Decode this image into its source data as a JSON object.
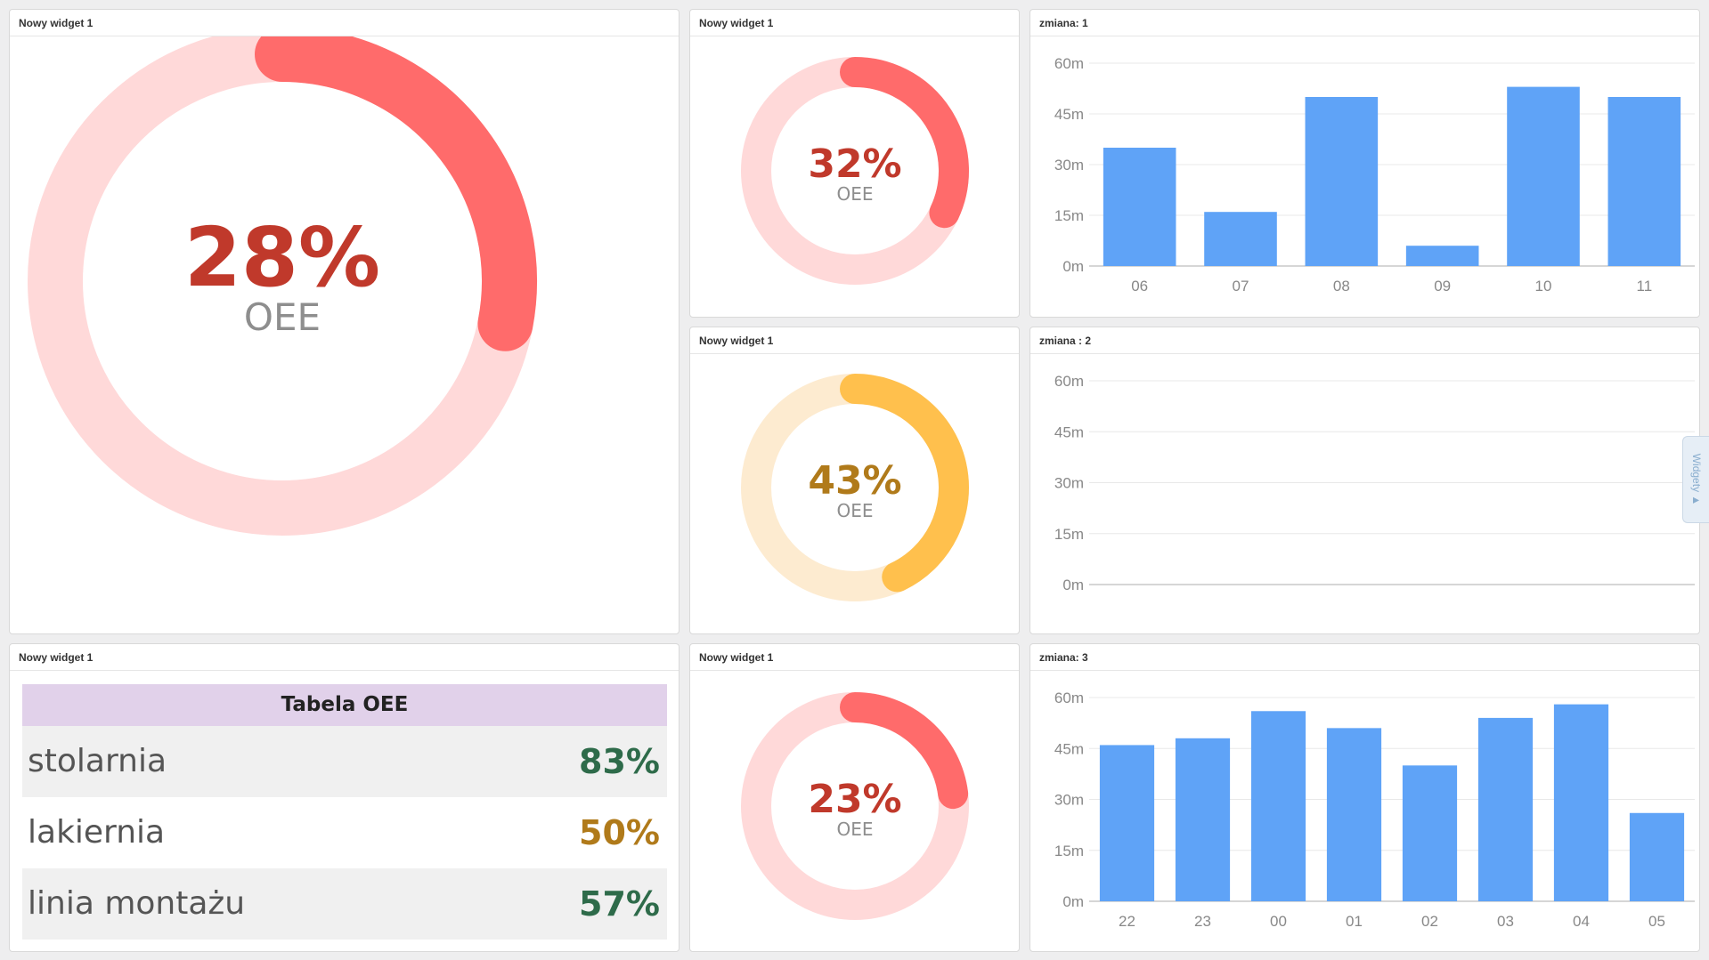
{
  "widgets": {
    "big_gauge": {
      "title": "Nowy widget 1",
      "percent": 28,
      "percent_text": "28%",
      "label": "OEE",
      "color": "#ff6b6b",
      "track": "#ffd9d9",
      "text_color": "#c0392b"
    },
    "gauge_1": {
      "title": "Nowy widget 1",
      "percent": 32,
      "percent_text": "32%",
      "label": "OEE",
      "color": "#ff6b6b",
      "track": "#ffd9d9",
      "text_color": "#c0392b"
    },
    "gauge_2": {
      "title": "Nowy widget 1",
      "percent": 43,
      "percent_text": "43%",
      "label": "OEE",
      "color": "#ffc04d",
      "track": "#fdebd0",
      "text_color": "#b07a1a"
    },
    "gauge_3": {
      "title": "Nowy widget 1",
      "percent": 23,
      "percent_text": "23%",
      "label": "OEE",
      "color": "#ff6b6b",
      "track": "#ffd9d9",
      "text_color": "#c0392b"
    },
    "table": {
      "title": "Nowy widget 1",
      "header": "Tabela OEE",
      "rows": [
        {
          "name": "stolarnia",
          "value": "83%",
          "color": "#2e6b4a"
        },
        {
          "name": "lakiernia",
          "value": "50%",
          "color": "#b07a1a"
        },
        {
          "name": "linia montażu",
          "value": "57%",
          "color": "#2e6b4a"
        }
      ]
    },
    "chart_1": {
      "title": "zmiana: 1"
    },
    "chart_2": {
      "title": "zmiana : 2"
    },
    "chart_3": {
      "title": "zmiana: 3"
    }
  },
  "side_tab": {
    "label": "Widgety ▲"
  },
  "bar_color": "#5fa3f7",
  "chart_data": [
    {
      "type": "bar",
      "title": "zmiana: 1",
      "categories": [
        "06",
        "07",
        "08",
        "09",
        "10",
        "11"
      ],
      "values": [
        35,
        16,
        50,
        6,
        53,
        50
      ],
      "ylim": [
        0,
        60
      ],
      "yticks": [
        "0m",
        "15m",
        "30m",
        "45m",
        "60m"
      ],
      "grid": true
    },
    {
      "type": "bar",
      "title": "zmiana : 2",
      "categories": [],
      "values": [],
      "ylim": [
        0,
        60
      ],
      "yticks": [
        "0m",
        "15m",
        "30m",
        "45m",
        "60m"
      ],
      "grid": true
    },
    {
      "type": "bar",
      "title": "zmiana: 3",
      "categories": [
        "22",
        "23",
        "00",
        "01",
        "02",
        "03",
        "04",
        "05"
      ],
      "values": [
        46,
        48,
        56,
        51,
        40,
        54,
        58,
        26
      ],
      "ylim": [
        0,
        60
      ],
      "yticks": [
        "0m",
        "15m",
        "30m",
        "45m",
        "60m"
      ],
      "grid": true
    }
  ]
}
